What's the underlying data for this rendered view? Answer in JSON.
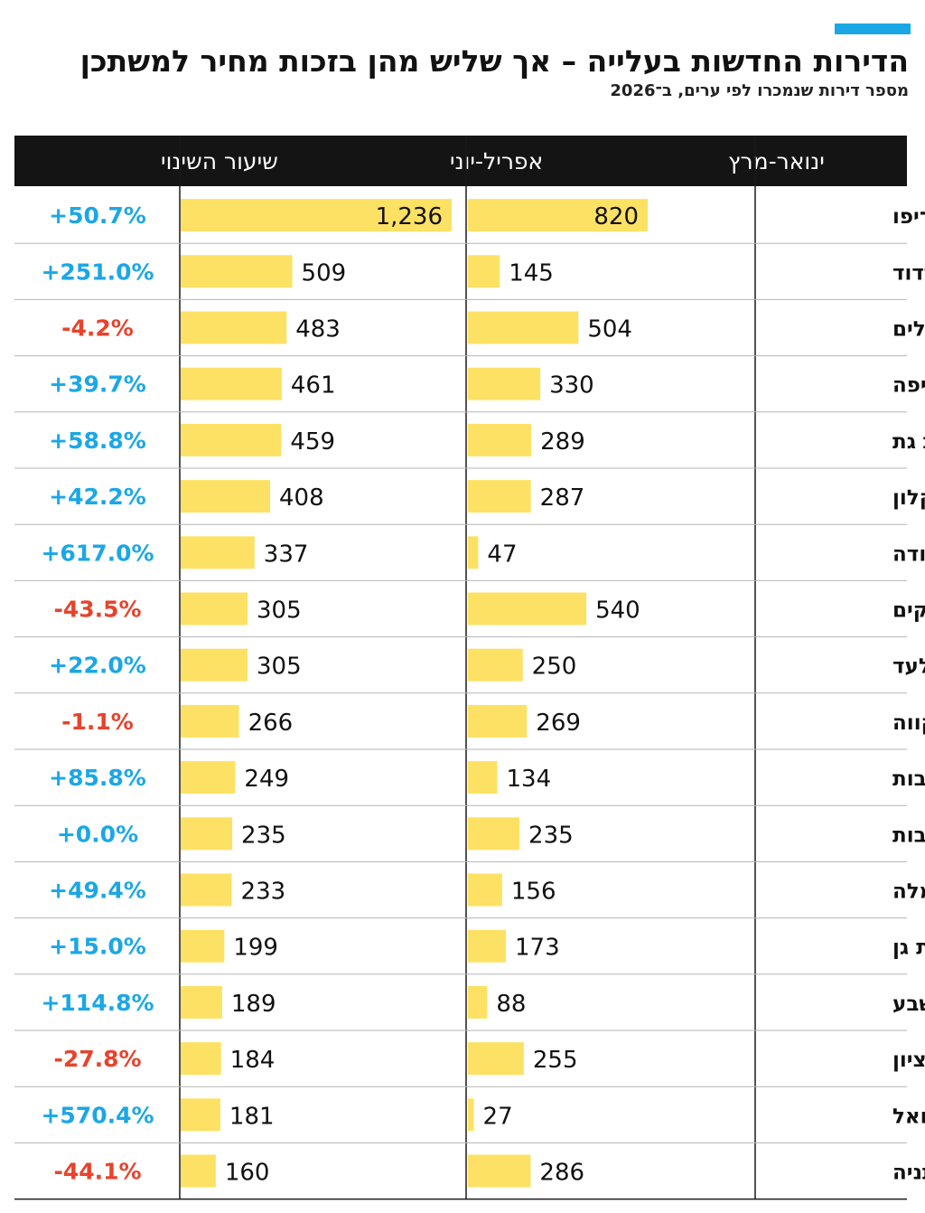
{
  "header": {
    "title": "הדירות החדשות בעלייה – אך שליש מהן בזכות מחיר למשתכן",
    "subtitle": "מספר דירות שנמכרו לפי ערים, ב־2026"
  },
  "chart_data": {
    "type": "bar",
    "title": "הדירות החדשות בעלייה – אך שליש מהן בזכות מחיר למשתכן",
    "subtitle": "מספר דירות שנמכרו לפי ערים, ב־2026",
    "column_headers": {
      "q1": "ינואר-מרץ",
      "q2": "אפריל-יוני",
      "change": "שיעור השינוי"
    },
    "categories": [
      "תל אביב־יפו",
      "אשדוד",
      "ירושלים",
      "חיפה",
      "קריית גת",
      "אשקלון",
      "אור יהודה",
      "אופקים",
      "אלעד",
      "פתח תקווה",
      "רחובות",
      "נתיבות",
      "רמלה",
      "רמת גן",
      "באר שבע",
      "ראשון לציון",
      "עמנואל",
      "נתניה"
    ],
    "series": [
      {
        "name": "ינואר-מרץ",
        "values": [
          820,
          145,
          504,
          330,
          289,
          287,
          47,
          540,
          250,
          269,
          134,
          235,
          156,
          173,
          88,
          255,
          27,
          286
        ],
        "labels": [
          "820",
          "145",
          "504",
          "330",
          "289",
          "287",
          "47",
          "540",
          "250",
          "269",
          "134",
          "235",
          "156",
          "173",
          "88",
          "255",
          "27",
          "286"
        ]
      },
      {
        "name": "אפריל-יוני",
        "values": [
          1236,
          509,
          483,
          461,
          459,
          408,
          337,
          305,
          305,
          266,
          249,
          235,
          233,
          199,
          189,
          184,
          181,
          160
        ],
        "labels": [
          "1,236",
          "509",
          "483",
          "461",
          "459",
          "408",
          "337",
          "305",
          "305",
          "266",
          "249",
          "235",
          "233",
          "199",
          "189",
          "184",
          "181",
          "160"
        ]
      }
    ],
    "change": [
      "+50.7%",
      "+251.0%",
      "-4.2%",
      "+39.7%",
      "+58.8%",
      "+42.2%",
      "+617.0%",
      "-43.5%",
      "+22.0%",
      "-1.1%",
      "+85.8%",
      "+0.0%",
      "+49.4%",
      "+15.0%",
      "+114.8%",
      "-27.8%",
      "+570.4%",
      "-44.1%"
    ],
    "bar_max": 1236,
    "grid": false,
    "legend": "none"
  },
  "colors": {
    "bar": "#fde164",
    "header_bg": "#141414",
    "accent": "#1ba7e6",
    "positive": "#1ba7e6",
    "negative": "#e8432c",
    "row_divider": "#b5b5b5"
  }
}
